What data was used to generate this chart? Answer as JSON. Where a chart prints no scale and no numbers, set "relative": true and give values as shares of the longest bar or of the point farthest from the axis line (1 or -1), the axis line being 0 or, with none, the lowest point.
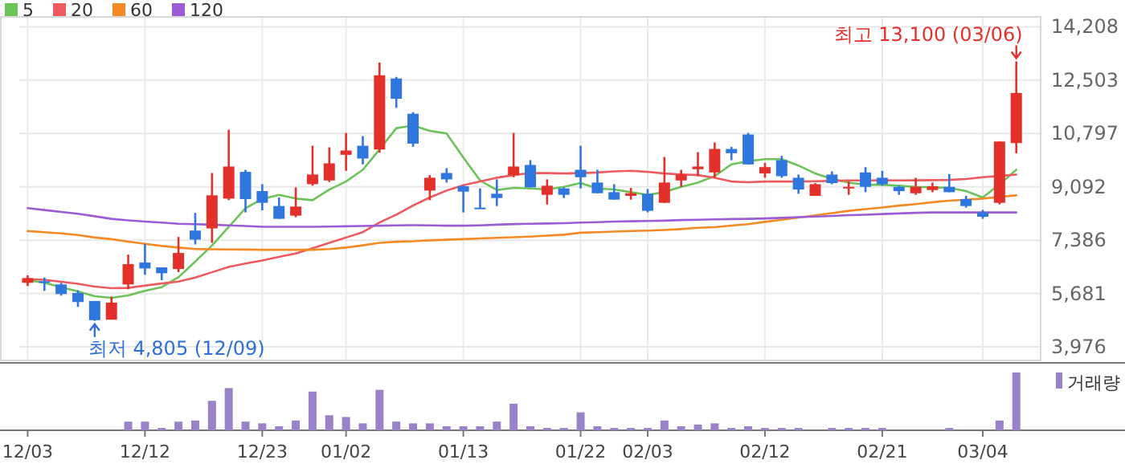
{
  "chart_data": [
    {
      "type": "candlestick",
      "categories": [
        "12/03",
        null,
        null,
        null,
        null,
        null,
        null,
        "12/12",
        null,
        null,
        null,
        null,
        null,
        null,
        "12/23",
        null,
        null,
        null,
        null,
        "01/02",
        null,
        null,
        null,
        null,
        null,
        null,
        "01/13",
        null,
        null,
        null,
        null,
        null,
        null,
        "01/22",
        null,
        null,
        null,
        "02/03",
        null,
        null,
        null,
        null,
        null,
        null,
        "02/12",
        null,
        null,
        null,
        null,
        null,
        null,
        "02/21",
        null,
        null,
        null,
        null,
        null,
        "03/04",
        null,
        null
      ],
      "ohlc": [
        [
          6021,
          6260,
          5918,
          6174
        ],
        [
          6074,
          6192,
          5765,
          6021
        ],
        [
          5970,
          6021,
          5611,
          5663
        ],
        [
          5697,
          5782,
          5253,
          5407
        ],
        [
          5441,
          5441,
          4805,
          4827
        ],
        [
          4844,
          5577,
          4844,
          5390
        ],
        [
          5970,
          6925,
          5816,
          6618
        ],
        [
          6669,
          7266,
          6277,
          6481
        ],
        [
          6516,
          6516,
          6106,
          6328
        ],
        [
          6464,
          7488,
          6362,
          6976
        ],
        [
          7693,
          8256,
          7249,
          7403
        ],
        [
          7761,
          9535,
          7300,
          8819
        ],
        [
          8716,
          10917,
          8665,
          9740
        ],
        [
          9569,
          9637,
          8273,
          8699
        ],
        [
          8955,
          9177,
          8341,
          8580
        ],
        [
          8477,
          8750,
          8068,
          8068
        ],
        [
          8170,
          9075,
          8119,
          8460
        ],
        [
          9177,
          10405,
          9126,
          9484
        ],
        [
          9296,
          10354,
          9245,
          9842
        ],
        [
          10115,
          10815,
          9603,
          10252
        ],
        [
          10405,
          10712,
          9808,
          9996
        ],
        [
          10286,
          13067,
          10183,
          12657
        ],
        [
          12555,
          12606,
          11617,
          11907
        ],
        [
          11429,
          11480,
          10371,
          10473
        ],
        [
          8972,
          9467,
          8665,
          9382
        ],
        [
          9535,
          9689,
          9228,
          9330
        ],
        [
          9109,
          9143,
          8273,
          8938
        ],
        [
          8426,
          9040,
          8392,
          8392
        ],
        [
          8870,
          9330,
          8477,
          8733
        ],
        [
          9467,
          10815,
          9398,
          9740
        ],
        [
          9791,
          9945,
          9075,
          9075
        ],
        [
          8836,
          9330,
          8528,
          9126
        ],
        [
          9040,
          9075,
          8733,
          8836
        ],
        [
          9637,
          10405,
          9040,
          9398
        ],
        [
          9228,
          9637,
          8887,
          8887
        ],
        [
          8921,
          9177,
          8682,
          8682
        ],
        [
          8802,
          9057,
          8682,
          8887
        ],
        [
          8870,
          9023,
          8273,
          8324
        ],
        [
          8580,
          10047,
          8580,
          9228
        ],
        [
          9296,
          9637,
          9092,
          9484
        ],
        [
          9655,
          10200,
          9433,
          9740
        ],
        [
          9552,
          10508,
          9382,
          10303
        ],
        [
          10303,
          10371,
          9945,
          10166
        ],
        [
          10764,
          10815,
          9808,
          9808
        ],
        [
          9518,
          9859,
          9381,
          9722
        ],
        [
          9944,
          10080,
          9381,
          9432
        ],
        [
          9381,
          9483,
          8869,
          9006
        ],
        [
          8801,
          9210,
          8801,
          9176
        ],
        [
          9483,
          9586,
          9176,
          9210
        ],
        [
          9057,
          9261,
          8835,
          9091
        ],
        [
          9551,
          9722,
          8920,
          9091
        ],
        [
          9381,
          9603,
          9125,
          9176
        ],
        [
          9091,
          9125,
          8835,
          8954
        ],
        [
          8886,
          9381,
          8835,
          9091
        ],
        [
          8988,
          9227,
          8920,
          9108
        ],
        [
          9091,
          9500,
          8920,
          8920
        ],
        [
          8699,
          8801,
          8426,
          8477
        ],
        [
          8272,
          8357,
          8067,
          8136
        ],
        [
          8579,
          10541,
          8528,
          10541
        ],
        [
          10490,
          13100,
          10166,
          12094
        ]
      ],
      "colors": [
        "#e4302a",
        "#2f76de",
        "#2f76de",
        "#2f76de",
        "#2f76de",
        "#e4302a",
        "#e4302a",
        "#2f76de",
        "#2f76de",
        "#e4302a",
        "#2f76de",
        "#e4302a",
        "#e4302a",
        "#2f76de",
        "#2f76de",
        "#2f76de",
        "#e4302a",
        "#e4302a",
        "#e4302a",
        "#e4302a",
        "#2f76de",
        "#e4302a",
        "#2f76de",
        "#2f76de",
        "#e4302a",
        "#2f76de",
        "#2f76de",
        "#2f76de",
        "#2f76de",
        "#e4302a",
        "#2f76de",
        "#e4302a",
        "#2f76de",
        "#2f76de",
        "#2f76de",
        "#2f76de",
        "#e4302a",
        "#2f76de",
        "#e4302a",
        "#e4302a",
        "#e4302a",
        "#e4302a",
        "#2f76de",
        "#2f76de",
        "#e4302a",
        "#2f76de",
        "#2f76de",
        "#e4302a",
        "#2f76de",
        "#e4302a",
        "#2f76de",
        "#2f76de",
        "#2f76de",
        "#e4302a",
        "#e4302a",
        "#2f76de",
        "#2f76de",
        "#2f76de",
        "#e4302a",
        "#e4302a"
      ],
      "series": [
        {
          "name": "5",
          "type": "line",
          "color": "#6cc35a",
          "values": [
            6106,
            6021,
            5884,
            5750,
            5594,
            5540,
            5620,
            5765,
            5884,
            6200,
            6703,
            7215,
            7812,
            8409,
            8700,
            8836,
            8716,
            8665,
            9006,
            9262,
            9637,
            10286,
            10968,
            11053,
            10883,
            10798,
            10030,
            9296,
            8989,
            9057,
            9040,
            9006,
            9092,
            9211,
            9040,
            9006,
            8921,
            8836,
            8921,
            9092,
            9228,
            9433,
            9808,
            9911,
            9978,
            9978,
            9773,
            9518,
            9347,
            9227,
            9159,
            9159,
            9125,
            9091,
            9074,
            9057,
            8954,
            8750,
            9176,
            9637
          ]
        },
        {
          "name": "20",
          "type": "line",
          "color": "#ee5a5e",
          "values": [
            6140,
            6120,
            6055,
            5990,
            5900,
            5850,
            5860,
            5935,
            6000,
            6060,
            6191,
            6360,
            6532,
            6640,
            6737,
            6850,
            6959,
            7130,
            7300,
            7470,
            7642,
            7950,
            8200,
            8494,
            8750,
            8972,
            9143,
            9262,
            9382,
            9467,
            9535,
            9530,
            9518,
            9530,
            9550,
            9586,
            9603,
            9570,
            9518,
            9490,
            9467,
            9380,
            9262,
            9240,
            9262,
            9262,
            9262,
            9270,
            9280,
            9296,
            9296,
            9300,
            9296,
            9300,
            9305,
            9313,
            9340,
            9398,
            9440,
            9483
          ]
        },
        {
          "name": "60",
          "type": "line",
          "color": "#f48a24",
          "values": [
            7676,
            7640,
            7600,
            7550,
            7470,
            7420,
            7340,
            7270,
            7200,
            7150,
            7100,
            7096,
            7090,
            7085,
            7079,
            7079,
            7079,
            7079,
            7100,
            7150,
            7220,
            7300,
            7335,
            7350,
            7380,
            7400,
            7420,
            7440,
            7460,
            7480,
            7500,
            7530,
            7560,
            7625,
            7640,
            7660,
            7680,
            7690,
            7710,
            7740,
            7780,
            7800,
            7850,
            7897,
            7970,
            8040,
            8110,
            8180,
            8250,
            8323,
            8380,
            8430,
            8490,
            8540,
            8600,
            8648,
            8680,
            8716,
            8770,
            8818
          ]
        },
        {
          "name": "120",
          "type": "line",
          "color": "#9b5cd6",
          "values": [
            8409,
            8350,
            8290,
            8230,
            8150,
            8068,
            8020,
            7980,
            7950,
            7910,
            7898,
            7880,
            7860,
            7840,
            7812,
            7812,
            7812,
            7812,
            7820,
            7830,
            7840,
            7850,
            7860,
            7864,
            7860,
            7850,
            7850,
            7860,
            7880,
            7900,
            7910,
            7920,
            7930,
            7949,
            7960,
            7980,
            7990,
            8000,
            8010,
            8030,
            8040,
            8050,
            8060,
            8067,
            8080,
            8100,
            8120,
            8140,
            8160,
            8187,
            8200,
            8220,
            8240,
            8260,
            8272,
            8272,
            8272,
            8272,
            8272,
            8272
          ]
        }
      ],
      "ylim": [
        3976,
        14208
      ],
      "yticks": [
        {
          "value": 14208,
          "label": "14,208"
        },
        {
          "value": 12503,
          "label": "12,503"
        },
        {
          "value": 10797,
          "label": "10,797"
        },
        {
          "value": 9092,
          "label": "9,092"
        },
        {
          "value": 7386,
          "label": "7,386"
        },
        {
          "value": 5681,
          "label": "5,681"
        },
        {
          "value": 3976,
          "label": "3,976"
        }
      ],
      "grid": true,
      "legend": "top left",
      "annotations": [
        "최고 13,100 (03/06)",
        "최저 4,805 (12/09)"
      ]
    },
    {
      "type": "bar",
      "relative": true,
      "categories": [
        null,
        null,
        null,
        null,
        null,
        null,
        null,
        null,
        null,
        null,
        null,
        null,
        null,
        null,
        null,
        null,
        null,
        null,
        null,
        null,
        null,
        null,
        null,
        null,
        null,
        null,
        null,
        null,
        null,
        null,
        null,
        null,
        null,
        null,
        null,
        null,
        null,
        null,
        null,
        null,
        null,
        null,
        null,
        null,
        null,
        null,
        null,
        null,
        null,
        null,
        null,
        null,
        null,
        null,
        null,
        null,
        null,
        null,
        null,
        null
      ],
      "series": [
        {
          "name": "거래량",
          "color": "#9a82c9",
          "values": [
            0,
            0,
            0,
            0,
            0,
            0,
            0.15,
            0.15,
            0.04,
            0.15,
            0.17,
            0.51,
            0.73,
            0.15,
            0.12,
            0.07,
            0.17,
            0.67,
            0.26,
            0.23,
            0.12,
            0.7,
            0.15,
            0.12,
            0.12,
            0.07,
            0.07,
            0.07,
            0.15,
            0.46,
            0.07,
            0.04,
            0.04,
            0.31,
            0.07,
            0.04,
            0.04,
            0.04,
            0.17,
            0.07,
            0.1,
            0.12,
            0.04,
            0.07,
            0.04,
            0.04,
            0.04,
            0,
            0.04,
            0.04,
            0.04,
            0.04,
            0,
            0,
            0,
            0.04,
            0,
            0,
            0.17,
            1
          ]
        }
      ],
      "legend": "top right"
    }
  ]
}
